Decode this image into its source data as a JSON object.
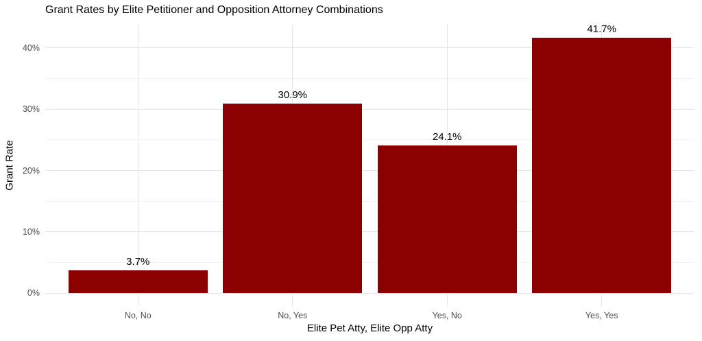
{
  "chart_data": {
    "type": "bar",
    "title": "Grant Rates by Elite Petitioner and Opposition Attorney Combinations",
    "xlabel": "Elite Pet Atty, Elite Opp Atty",
    "ylabel": "Grant Rate",
    "categories": [
      "No, No",
      "No, Yes",
      "Yes, No",
      "Yes, Yes"
    ],
    "values": [
      3.7,
      30.9,
      24.1,
      41.7
    ],
    "bar_labels": [
      "3.7%",
      "30.9%",
      "24.1%",
      "41.7%"
    ],
    "y_tick_values": [
      0,
      10,
      20,
      30,
      40
    ],
    "y_tick_labels": [
      "0%",
      "10%",
      "20%",
      "30%",
      "40%"
    ],
    "y_minor_values": [
      5,
      15,
      25,
      35
    ],
    "ylim": [
      0,
      41.7
    ],
    "bar_color": "#8B0000",
    "background_color": "#FFFFFF",
    "major_grid_color": "#E6E6E6",
    "minor_grid_color": "#F2F2F2",
    "tick_label_color": "#4D4D4D",
    "text_color": "#000000",
    "grid": "on",
    "legend": "none",
    "bar_relative_width": 0.9
  }
}
